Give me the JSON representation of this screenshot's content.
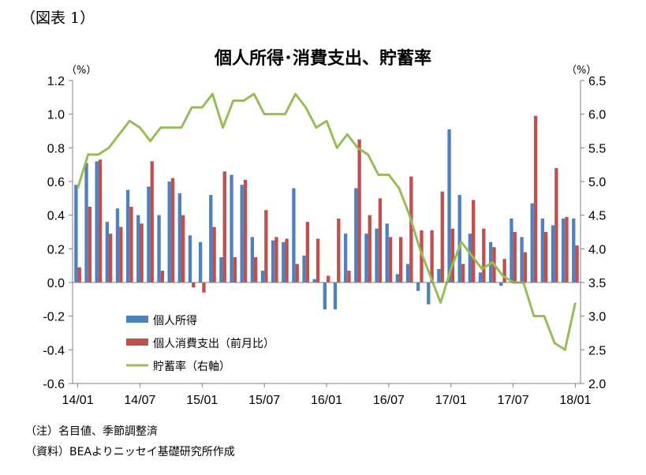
{
  "figure_label": "（図表 1）",
  "chart_data": {
    "type": "bar",
    "title": "個人所得･消費支出、貯蓄率",
    "y_left_label": "（%）",
    "y_right_label": "（%）",
    "y_left_range": [
      -0.6,
      1.2
    ],
    "y_right_range": [
      2.0,
      6.5
    ],
    "y_left_ticks": [
      "1.2",
      "1.0",
      "0.8",
      "0.6",
      "0.4",
      "0.2",
      "0.0",
      "-0.2",
      "-0.4",
      "-0.6"
    ],
    "y_right_ticks": [
      "6.5",
      "6.0",
      "5.5",
      "5.0",
      "4.5",
      "4.0",
      "3.5",
      "3.0",
      "2.5",
      "2.0"
    ],
    "x_tick_labels": [
      "14/01",
      "14/07",
      "15/01",
      "15/07",
      "16/01",
      "16/07",
      "17/01",
      "17/07",
      "18/01"
    ],
    "categories": [
      "14/01",
      "14/02",
      "14/03",
      "14/04",
      "14/05",
      "14/06",
      "14/07",
      "14/08",
      "14/09",
      "14/10",
      "14/11",
      "14/12",
      "15/01",
      "15/02",
      "15/03",
      "15/04",
      "15/05",
      "15/06",
      "15/07",
      "15/08",
      "15/09",
      "15/10",
      "15/11",
      "15/12",
      "16/01",
      "16/02",
      "16/03",
      "16/04",
      "16/05",
      "16/06",
      "16/07",
      "16/08",
      "16/09",
      "16/10",
      "16/11",
      "16/12",
      "17/01",
      "17/02",
      "17/03",
      "17/04",
      "17/05",
      "17/06",
      "17/07",
      "17/08",
      "17/09",
      "17/10",
      "17/11",
      "17/12",
      "18/01"
    ],
    "series": [
      {
        "name": "個人所得",
        "type": "bar",
        "axis": "left",
        "color": "#4f81bd",
        "values": [
          0.58,
          0.71,
          0.72,
          0.36,
          0.44,
          0.55,
          0.4,
          0.57,
          0.4,
          0.6,
          0.53,
          0.28,
          0.24,
          0.52,
          0.15,
          0.64,
          0.58,
          0.27,
          0.07,
          0.25,
          0.24,
          0.56,
          0.16,
          0.02,
          -0.16,
          -0.16,
          0.29,
          0.56,
          0.29,
          0.32,
          0.35,
          0.05,
          0.11,
          -0.05,
          -0.13,
          0.08,
          0.91,
          0.52,
          0.29,
          0.06,
          0.24,
          -0.02,
          0.38,
          0.27,
          0.47,
          0.38,
          0.34,
          0.38,
          0.38
        ]
      },
      {
        "name": "個人消費支出（前月比）",
        "type": "bar",
        "axis": "left",
        "color": "#c0504d",
        "values": [
          0.09,
          0.45,
          0.73,
          0.29,
          0.33,
          0.45,
          0.35,
          0.72,
          0.07,
          0.62,
          0.4,
          -0.03,
          -0.06,
          0.33,
          0.66,
          0.15,
          0.61,
          0.15,
          0.43,
          0.27,
          0.26,
          0.11,
          0.36,
          0.26,
          0.04,
          0.38,
          0.07,
          0.85,
          0.4,
          0.5,
          0.27,
          0.27,
          0.63,
          0.31,
          0.31,
          0.54,
          0.32,
          0.11,
          0.49,
          0.32,
          0.21,
          0.14,
          0.3,
          0.18,
          0.99,
          0.3,
          0.68,
          0.39,
          0.22
        ]
      },
      {
        "name": "貯蓄率（右軸）",
        "type": "line",
        "axis": "right",
        "color": "#9bbb59",
        "values": [
          4.9,
          5.4,
          5.4,
          5.5,
          5.7,
          5.9,
          5.8,
          5.6,
          5.8,
          5.8,
          5.8,
          6.1,
          6.1,
          6.3,
          5.8,
          6.2,
          6.2,
          6.3,
          6.0,
          6.0,
          6.0,
          6.3,
          6.1,
          5.8,
          5.9,
          5.5,
          5.7,
          5.5,
          5.4,
          5.1,
          5.1,
          4.9,
          4.5,
          4.0,
          3.6,
          3.2,
          3.7,
          4.1,
          3.9,
          3.7,
          3.8,
          3.6,
          3.5,
          3.5,
          3.0,
          3.0,
          2.6,
          2.5,
          3.2
        ]
      }
    ],
    "legend_position": "lower-left",
    "grid": false
  },
  "notes": {
    "note1": "（注）名目値、季節調整済",
    "note2": "（資料）BEAよりニッセイ基礎研究所作成"
  }
}
